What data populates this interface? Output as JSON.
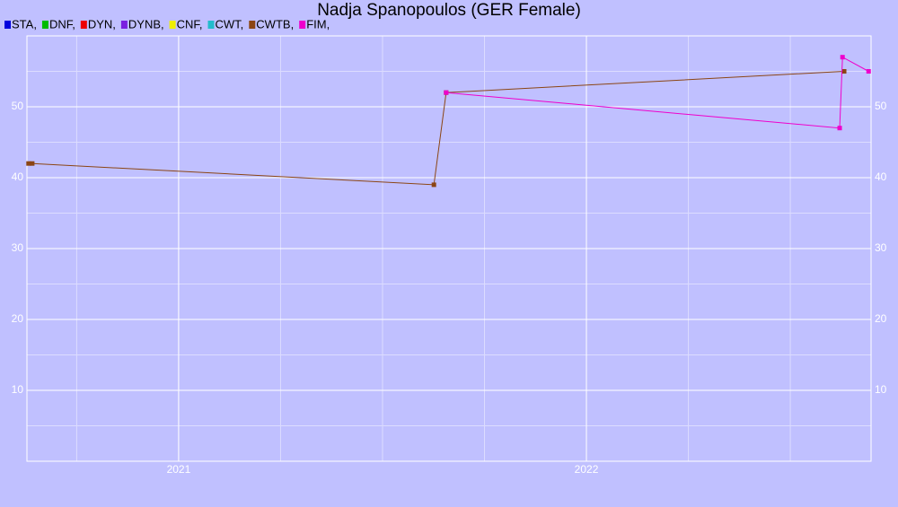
{
  "chart_data": {
    "type": "line",
    "title": "Nadja Spanopoulos (GER Female)",
    "series": [
      {
        "name": "STA,",
        "color": "#0000dd",
        "x": [],
        "values": []
      },
      {
        "name": "DNF,",
        "color": "#00bb00",
        "x": [],
        "values": []
      },
      {
        "name": "DYN,",
        "color": "#ee0000",
        "x": [],
        "values": []
      },
      {
        "name": "DYNB,",
        "color": "#7a1fe0",
        "x": [],
        "values": []
      },
      {
        "name": "CNF,",
        "color": "#eeee00",
        "x": [],
        "values": []
      },
      {
        "name": "CWT,",
        "color": "#22bbcc",
        "x": [],
        "values": []
      },
      {
        "name": "CWTB,",
        "color": "#8b4513",
        "x": [
          2020.632,
          2020.641,
          2021.626,
          2021.656,
          2022.632
        ],
        "values": [
          42,
          42,
          39,
          52,
          55
        ]
      },
      {
        "name": "FIM,",
        "color": "#ee00cc",
        "x": [
          2021.656,
          2022.621,
          2022.628,
          2022.692
        ],
        "values": [
          52,
          47,
          57,
          55
        ]
      }
    ],
    "xlim": [
      2020.628,
      2022.698
    ],
    "xticks": [
      2021,
      2022
    ],
    "ylim": [
      0,
      60
    ],
    "yticks": [
      10,
      20,
      30,
      40,
      50
    ],
    "grid": true
  }
}
